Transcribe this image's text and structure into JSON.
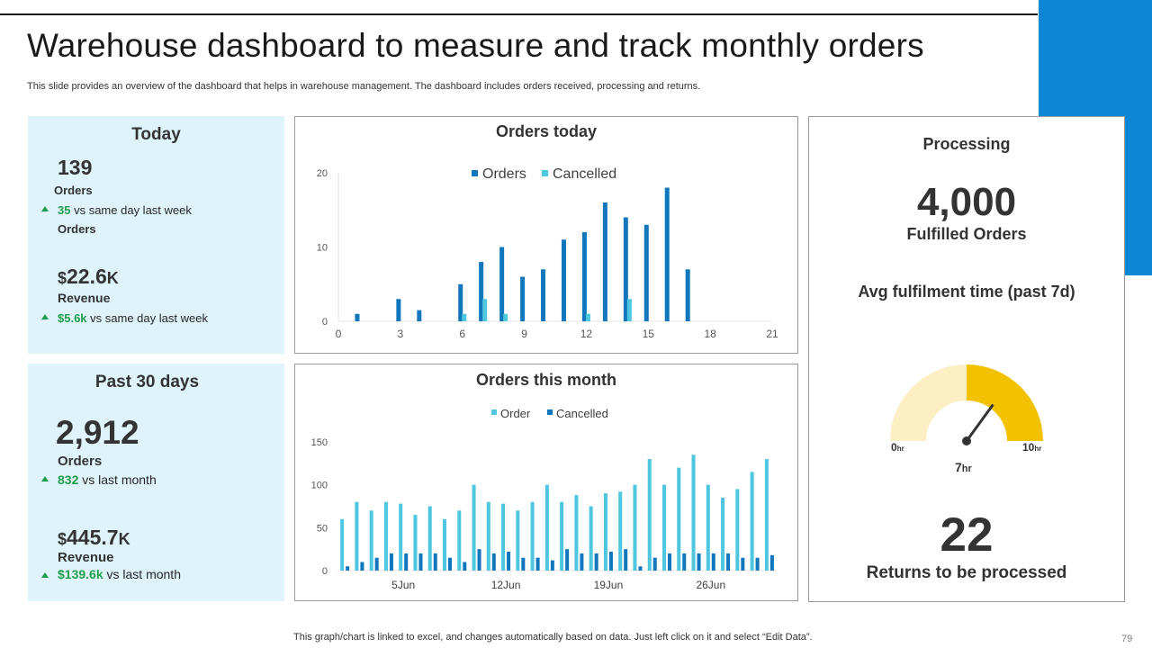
{
  "header": {
    "title": "Warehouse dashboard to measure and track monthly orders",
    "subtitle": "This slide provides an overview of the dashboard that helps in warehouse management. The dashboard includes orders received, processing and returns."
  },
  "today": {
    "heading": "Today",
    "orders_value": "139",
    "orders_label": "Orders",
    "orders_delta": "35",
    "orders_delta_text": "vs  same day last week",
    "orders_delta_label": "Orders",
    "revenue_currency": "$",
    "revenue_value": "22.6",
    "revenue_suffix": "K",
    "revenue_label": "Revenue",
    "revenue_delta": "$5.6k",
    "revenue_delta_text": "vs  same day last week"
  },
  "past30": {
    "heading": "Past 30 days",
    "orders_value": "2,912",
    "orders_label": "Orders",
    "orders_delta": "832",
    "orders_delta_text": "vs last month",
    "revenue_currency": "$",
    "revenue_value": "445.7",
    "revenue_suffix": "K",
    "revenue_label": "Revenue",
    "revenue_delta": "$139.6k",
    "revenue_delta_text": "vs last month"
  },
  "processing": {
    "heading": "Processing",
    "fulfilled_value": "4,000",
    "fulfilled_label": "Fulfilled Orders",
    "avg_title": "Avg fulfilment time (past 7d)",
    "gauge_value": 7,
    "gauge_max": 10,
    "gauge_min_label": "0",
    "gauge_max_label": "10",
    "gauge_unit": "hr",
    "gauge_value_label": "7",
    "returns_value": "22",
    "returns_label": "Returns to be processed"
  },
  "chart_data": [
    {
      "type": "bar",
      "title": "Orders today",
      "x": [
        1,
        3,
        4,
        6,
        7,
        8,
        9,
        10,
        11,
        12,
        13,
        14,
        15,
        16,
        17
      ],
      "series": [
        {
          "name": "Orders",
          "color": "#1077bc",
          "values": [
            1,
            3,
            1.5,
            5,
            8,
            10,
            6,
            7,
            11,
            12,
            16,
            14,
            13,
            18,
            7
          ]
        },
        {
          "name": "Cancelled",
          "color": "#4ec6df",
          "values": [
            0,
            0,
            0,
            1,
            3,
            1,
            0,
            0,
            0,
            1,
            0,
            3,
            0,
            0,
            0
          ]
        }
      ],
      "xticks": [
        0,
        3,
        6,
        9,
        12,
        15,
        18,
        21
      ],
      "xlim": [
        0,
        21
      ],
      "yticks": [
        0,
        10,
        20
      ],
      "ylim": [
        0,
        20
      ]
    },
    {
      "type": "bar",
      "title": "Orders this month",
      "categories": [
        "",
        "",
        "",
        "",
        "5Jun",
        "",
        "",
        "",
        "",
        "",
        "",
        "12Jun",
        "",
        "",
        "",
        "",
        "",
        "",
        "19Jun",
        "",
        "",
        "",
        "",
        "",
        "",
        "26Jun",
        "",
        "",
        "",
        ""
      ],
      "series": [
        {
          "name": "Order",
          "color": "#4ec6df",
          "values": [
            60,
            80,
            70,
            80,
            78,
            65,
            75,
            60,
            70,
            100,
            80,
            78,
            70,
            80,
            100,
            80,
            88,
            75,
            90,
            92,
            100,
            130,
            100,
            120,
            135,
            100,
            85,
            95,
            115,
            130
          ]
        },
        {
          "name": "Cancelled",
          "color": "#1077bc",
          "values": [
            5,
            10,
            15,
            20,
            20,
            20,
            20,
            15,
            10,
            25,
            20,
            22,
            15,
            15,
            12,
            25,
            20,
            20,
            22,
            25,
            5,
            15,
            20,
            20,
            20,
            20,
            20,
            15,
            15,
            18
          ]
        }
      ],
      "yticks": [
        0,
        50,
        100,
        150
      ],
      "ylim": [
        0,
        150
      ]
    }
  ]
}
